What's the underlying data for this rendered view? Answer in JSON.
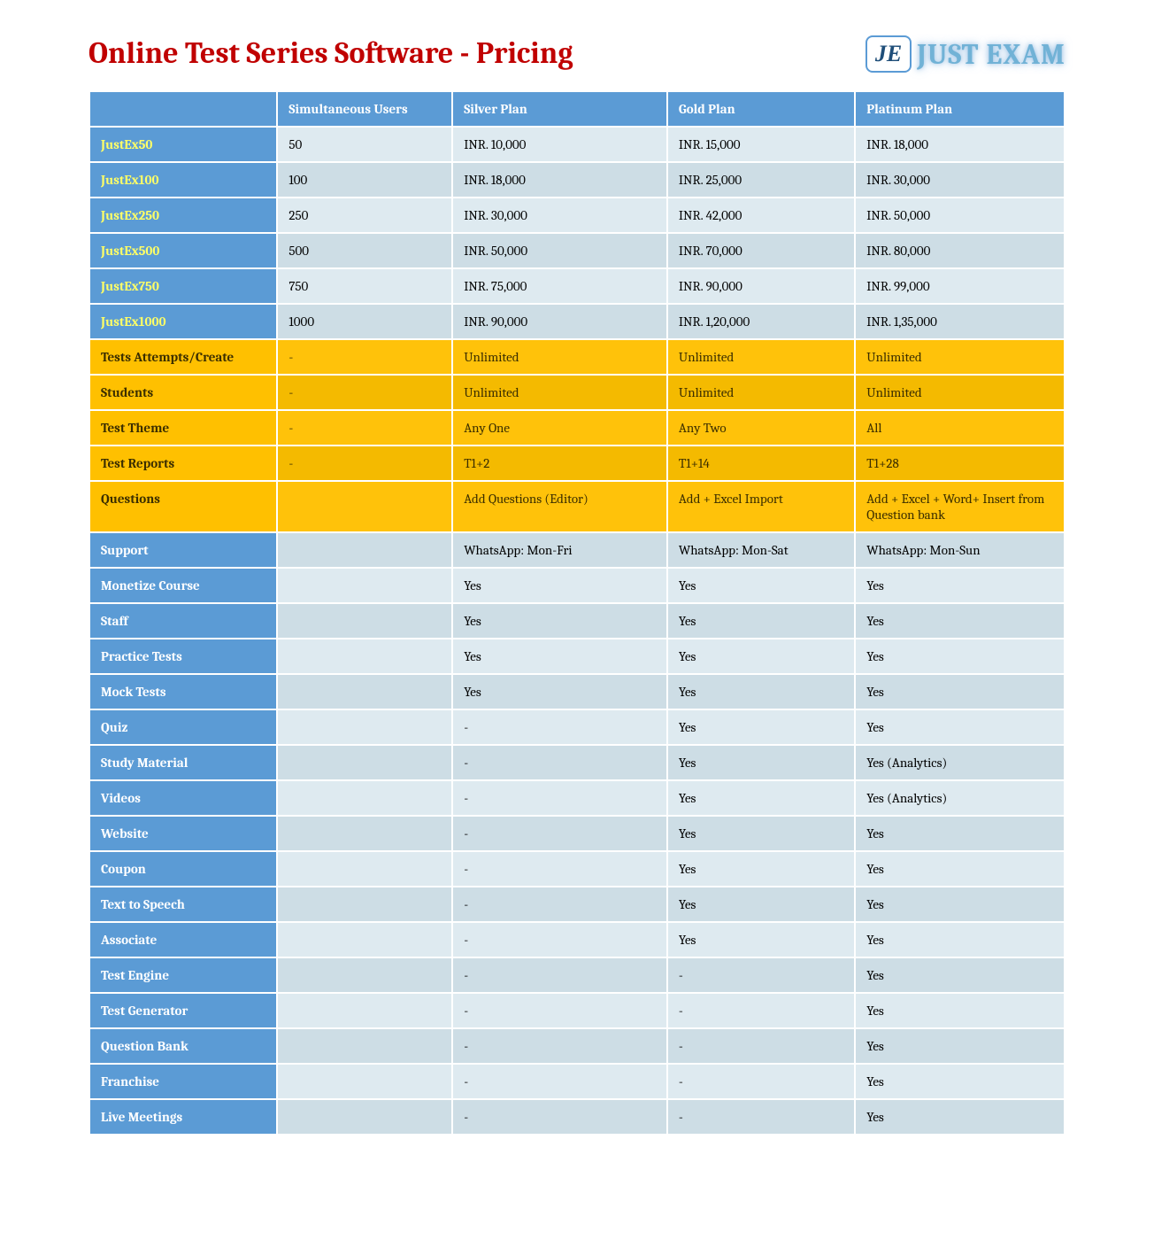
{
  "title": "Online Test Series Software - Pricing",
  "logo": {
    "badge": "JE",
    "text": "JUST EXAM"
  },
  "colors": {
    "title": "#c00000",
    "header_bg": "#5b9bd5",
    "header_fg": "#ffffff",
    "price_label_fg": "#ffff66",
    "row_alt_a": "#deeaf0",
    "row_alt_b": "#cddde5",
    "orange_label_bg": "#ffc000",
    "orange_val_a": "#ffc20a",
    "orange_val_b": "#f4ba00",
    "orange_fg": "#3b2e00"
  },
  "columns": [
    "",
    "Simultaneous Users",
    "Silver Plan",
    "Gold Plan",
    "Platinum Plan"
  ],
  "pricing_rows": [
    {
      "label": "JustEx50",
      "users": "50",
      "silver": "INR. 10,000",
      "gold": "INR. 15,000",
      "platinum": "INR. 18,000"
    },
    {
      "label": "JustEx100",
      "users": "100",
      "silver": "INR. 18,000",
      "gold": "INR. 25,000",
      "platinum": "INR. 30,000"
    },
    {
      "label": "JustEx250",
      "users": "250",
      "silver": "INR. 30,000",
      "gold": "INR. 42,000",
      "platinum": "INR. 50,000"
    },
    {
      "label": "JustEx500",
      "users": "500",
      "silver": "INR. 50,000",
      "gold": "INR. 70,000",
      "platinum": "INR. 80,000"
    },
    {
      "label": "JustEx750",
      "users": "750",
      "silver": "INR. 75,000",
      "gold": "INR. 90,000",
      "platinum": "INR. 99,000"
    },
    {
      "label": "JustEx1000",
      "users": "1000",
      "silver": "INR. 90,000",
      "gold": "INR. 1,20,000",
      "platinum": "INR. 1,35,000"
    }
  ],
  "orange_rows": [
    {
      "label": "Tests Attempts/Create",
      "users": "-",
      "silver": "Unlimited",
      "gold": "Unlimited",
      "platinum": "Unlimited"
    },
    {
      "label": "Students",
      "users": "-",
      "silver": "Unlimited",
      "gold": "Unlimited",
      "platinum": "Unlimited"
    },
    {
      "label": "Test Theme",
      "users": "-",
      "silver": "Any One",
      "gold": "Any Two",
      "platinum": "All"
    },
    {
      "label": "Test Reports",
      "users": "-",
      "silver": "T1+2",
      "gold": "T1+14",
      "platinum": "T1+28"
    },
    {
      "label": "Questions",
      "users": "",
      "silver": "Add Questions (Editor)",
      "gold": "Add + Excel Import",
      "platinum": "Add + Excel + Word+ Insert from Question bank"
    }
  ],
  "feature_rows": [
    {
      "label": "Support",
      "users": "",
      "silver": "WhatsApp: Mon-Fri",
      "gold": "WhatsApp: Mon-Sat",
      "platinum": "WhatsApp: Mon-Sun"
    },
    {
      "label": "Monetize Course",
      "users": "",
      "silver": "Yes",
      "gold": "Yes",
      "platinum": "Yes"
    },
    {
      "label": "Staff",
      "users": "",
      "silver": "Yes",
      "gold": "Yes",
      "platinum": "Yes"
    },
    {
      "label": "Practice Tests",
      "users": "",
      "silver": "Yes",
      "gold": "Yes",
      "platinum": "Yes"
    },
    {
      "label": "Mock Tests",
      "users": "",
      "silver": "Yes",
      "gold": "Yes",
      "platinum": "Yes"
    },
    {
      "label": "Quiz",
      "users": "",
      "silver": "-",
      "gold": "Yes",
      "platinum": "Yes"
    },
    {
      "label": "Study Material",
      "users": "",
      "silver": "-",
      "gold": "Yes",
      "platinum": "Yes (Analytics)"
    },
    {
      "label": "Videos",
      "users": "",
      "silver": "-",
      "gold": "Yes",
      "platinum": "Yes (Analytics)"
    },
    {
      "label": "Website",
      "users": "",
      "silver": "-",
      "gold": "Yes",
      "platinum": "Yes"
    },
    {
      "label": "Coupon",
      "users": "",
      "silver": "-",
      "gold": "Yes",
      "platinum": "Yes"
    },
    {
      "label": "Text to Speech",
      "users": "",
      "silver": "-",
      "gold": "Yes",
      "platinum": "Yes"
    },
    {
      "label": "Associate",
      "users": "",
      "silver": "-",
      "gold": "Yes",
      "platinum": "Yes"
    },
    {
      "label": "Test Engine",
      "users": "",
      "silver": "-",
      "gold": "-",
      "platinum": "Yes"
    },
    {
      "label": "Test Generator",
      "users": "",
      "silver": "-",
      "gold": "-",
      "platinum": "Yes"
    },
    {
      "label": "Question Bank",
      "users": "",
      "silver": "-",
      "gold": "-",
      "platinum": "Yes"
    },
    {
      "label": "Franchise",
      "users": "",
      "silver": "-",
      "gold": "-",
      "platinum": "Yes"
    },
    {
      "label": "Live Meetings",
      "users": "",
      "silver": "-",
      "gold": "-",
      "platinum": "Yes"
    }
  ]
}
